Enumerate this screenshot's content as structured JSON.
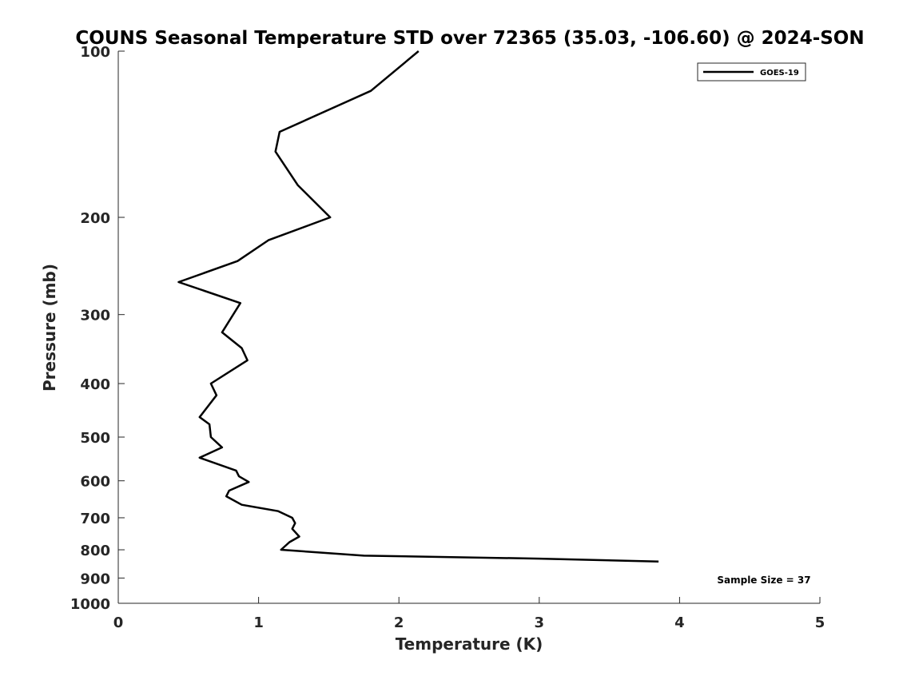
{
  "chart_data": {
    "type": "line",
    "title": "COUNS Seasonal Temperature STD over 72365 (35.03, -106.60) @ 2024-SON",
    "xlabel": "Temperature (K)",
    "ylabel": "Pressure (mb)",
    "xlim": [
      0,
      5
    ],
    "ylim": [
      100,
      1000
    ],
    "y_scale": "log",
    "y_reversed": true,
    "x_ticks": [
      "0",
      "1",
      "2",
      "3",
      "4",
      "5"
    ],
    "y_ticks": [
      "100",
      "200",
      "300",
      "400",
      "500",
      "600",
      "700",
      "800",
      "900",
      "1000"
    ],
    "grid": false,
    "legend_position": "top-right",
    "annotation": "Sample Size = 37",
    "series": [
      {
        "name": "GOES-19",
        "color": "#000000",
        "points": [
          {
            "x": 2.14,
            "y": 100
          },
          {
            "x": 1.8,
            "y": 118
          },
          {
            "x": 1.15,
            "y": 140
          },
          {
            "x": 1.12,
            "y": 152
          },
          {
            "x": 1.28,
            "y": 175
          },
          {
            "x": 1.51,
            "y": 200
          },
          {
            "x": 1.07,
            "y": 220
          },
          {
            "x": 0.85,
            "y": 240
          },
          {
            "x": 0.43,
            "y": 262
          },
          {
            "x": 0.87,
            "y": 286
          },
          {
            "x": 0.74,
            "y": 323
          },
          {
            "x": 0.88,
            "y": 345
          },
          {
            "x": 0.92,
            "y": 363
          },
          {
            "x": 0.66,
            "y": 400
          },
          {
            "x": 0.7,
            "y": 420
          },
          {
            "x": 0.58,
            "y": 460
          },
          {
            "x": 0.65,
            "y": 474
          },
          {
            "x": 0.66,
            "y": 500
          },
          {
            "x": 0.74,
            "y": 522
          },
          {
            "x": 0.58,
            "y": 545
          },
          {
            "x": 0.84,
            "y": 575
          },
          {
            "x": 0.86,
            "y": 589
          },
          {
            "x": 0.93,
            "y": 603
          },
          {
            "x": 0.79,
            "y": 625
          },
          {
            "x": 0.77,
            "y": 640
          },
          {
            "x": 0.88,
            "y": 663
          },
          {
            "x": 1.14,
            "y": 681
          },
          {
            "x": 1.24,
            "y": 700
          },
          {
            "x": 1.26,
            "y": 716
          },
          {
            "x": 1.24,
            "y": 733
          },
          {
            "x": 1.29,
            "y": 757
          },
          {
            "x": 1.22,
            "y": 775
          },
          {
            "x": 1.16,
            "y": 800
          },
          {
            "x": 1.75,
            "y": 820
          },
          {
            "x": 3.0,
            "y": 830
          },
          {
            "x": 3.85,
            "y": 840
          }
        ]
      }
    ]
  }
}
